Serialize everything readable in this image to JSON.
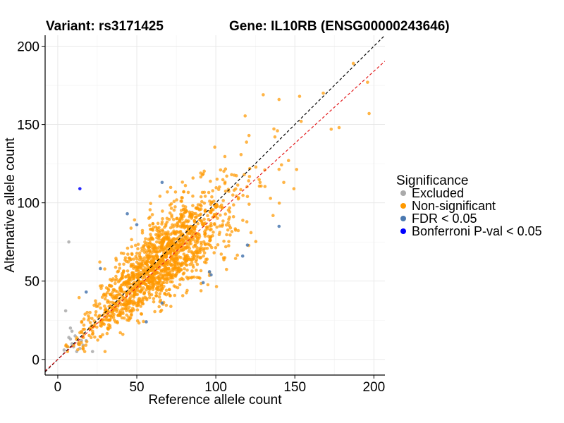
{
  "chart_data": {
    "type": "scatter",
    "title_left": "Variant: rs3171425",
    "title_right": "Gene: IL10RB (ENSG00000243646)",
    "xlabel": "Reference allele count",
    "ylabel": "Alternative allele count",
    "xlim": [
      -8,
      207
    ],
    "ylim": [
      -10,
      207
    ],
    "x_ticks": [
      {
        "value": 0,
        "label": "0"
      },
      {
        "value": 50,
        "label": "50"
      },
      {
        "value": 100,
        "label": "100"
      },
      {
        "value": 150,
        "label": "150"
      },
      {
        "value": 200,
        "label": "200"
      }
    ],
    "y_ticks": [
      {
        "value": 0,
        "label": "0"
      },
      {
        "value": 50,
        "label": "50"
      },
      {
        "value": 100,
        "label": "100"
      },
      {
        "value": 150,
        "label": "150"
      },
      {
        "value": 200,
        "label": "200"
      }
    ],
    "grid": true,
    "reference_lines": [
      {
        "name": "identity",
        "slope": 1.0,
        "intercept": 0,
        "color": "#000000",
        "style": "dashed"
      },
      {
        "name": "fitted",
        "slope": 0.92,
        "intercept": 0,
        "color": "#e31a1c",
        "style": "dashed"
      }
    ],
    "legend": {
      "title": "Significance",
      "position": "right",
      "entries": [
        {
          "label": "Excluded",
          "color": "#aaaaaa"
        },
        {
          "label": "Non-significant",
          "color": "#ff9900"
        },
        {
          "label": "FDR < 0.05",
          "color": "#4a78b0"
        },
        {
          "label": "Bonferroni P-val < 0.05",
          "color": "#0000ff"
        }
      ]
    },
    "series": [
      {
        "name": "Excluded",
        "color": "#aaaaaa",
        "points": [
          [
            7,
            75
          ],
          [
            5,
            31
          ],
          [
            8,
            20
          ],
          [
            7,
            14
          ],
          [
            9,
            10
          ],
          [
            10,
            8
          ],
          [
            4,
            6
          ],
          [
            12,
            5
          ],
          [
            14,
            7
          ],
          [
            16,
            9
          ],
          [
            18,
            12
          ],
          [
            22,
            5
          ],
          [
            6,
            8
          ],
          [
            8,
            13
          ],
          [
            11,
            15
          ],
          [
            13,
            10
          ],
          [
            15,
            12
          ],
          [
            9,
            18
          ]
        ]
      },
      {
        "name": "Non-significant",
        "color": "#ff9900",
        "n_points": 1600,
        "points": [
          [
            187,
            189
          ],
          [
            196,
            177
          ],
          [
            197,
            157
          ],
          [
            178,
            148
          ],
          [
            173,
            147
          ],
          [
            130,
            169
          ],
          [
            140,
            166
          ],
          [
            153,
            168
          ],
          [
            168,
            170
          ],
          [
            154,
            152
          ],
          [
            121,
            143
          ],
          [
            103,
            121
          ],
          [
            110,
            118
          ],
          [
            120,
            104
          ],
          [
            118,
            118
          ],
          [
            128,
            113
          ],
          [
            131,
            121
          ],
          [
            143,
            113
          ],
          [
            139,
            146
          ],
          [
            146,
            127
          ]
        ]
      },
      {
        "name": "FDR < 0.05",
        "color": "#4a78b0",
        "points": [
          [
            66,
            113
          ],
          [
            44,
            93
          ],
          [
            50,
            86
          ],
          [
            140,
            85
          ],
          [
            120,
            73
          ],
          [
            117,
            66
          ],
          [
            27,
            58
          ],
          [
            96,
            56
          ],
          [
            97,
            54
          ],
          [
            92,
            49
          ],
          [
            18,
            43
          ],
          [
            66,
            36
          ],
          [
            56,
            24
          ]
        ]
      },
      {
        "name": "Bonferroni P-val < 0.05",
        "color": "#0000ff",
        "points": [
          [
            14,
            109
          ]
        ]
      }
    ]
  }
}
